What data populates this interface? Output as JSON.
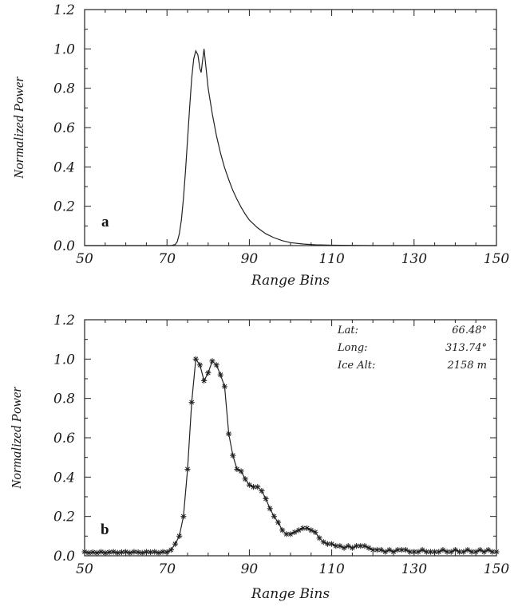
{
  "chart_data": [
    {
      "type": "line",
      "panel_label": "a",
      "xlabel": "Range Bins",
      "ylabel": "Normalized Power",
      "xlim": [
        50,
        150
      ],
      "ylim": [
        0.0,
        1.2
      ],
      "xticks": [
        "50",
        "70",
        "90",
        "110",
        "130",
        "150"
      ],
      "yticks": [
        "0.0",
        "0.2",
        "0.4",
        "0.6",
        "0.8",
        "1.0",
        "1.2"
      ],
      "grid": false,
      "series": [
        {
          "markers": false,
          "points": [
            [
              50,
              0.0
            ],
            [
              70,
              0.0
            ],
            [
              71,
              0.0
            ],
            [
              72,
              0.005
            ],
            [
              72.5,
              0.02
            ],
            [
              73,
              0.06
            ],
            [
              73.5,
              0.13
            ],
            [
              74,
              0.24
            ],
            [
              74.5,
              0.38
            ],
            [
              75,
              0.54
            ],
            [
              75.5,
              0.7
            ],
            [
              76,
              0.85
            ],
            [
              76.5,
              0.95
            ],
            [
              77,
              0.99
            ],
            [
              77.5,
              0.97
            ],
            [
              78,
              0.9
            ],
            [
              78.3,
              0.88
            ],
            [
              78.7,
              0.95
            ],
            [
              79,
              1.0
            ],
            [
              79.5,
              0.9
            ],
            [
              80,
              0.8
            ],
            [
              81,
              0.67
            ],
            [
              82,
              0.56
            ],
            [
              83,
              0.47
            ],
            [
              84,
              0.395
            ],
            [
              85,
              0.335
            ],
            [
              86,
              0.28
            ],
            [
              87,
              0.235
            ],
            [
              88,
              0.195
            ],
            [
              89,
              0.16
            ],
            [
              90,
              0.13
            ],
            [
              92,
              0.09
            ],
            [
              94,
              0.06
            ],
            [
              96,
              0.04
            ],
            [
              98,
              0.025
            ],
            [
              100,
              0.015
            ],
            [
              103,
              0.008
            ],
            [
              106,
              0.004
            ],
            [
              110,
              0.002
            ],
            [
              120,
              0.0
            ],
            [
              130,
              0.0
            ],
            [
              150,
              0.0
            ]
          ]
        }
      ]
    },
    {
      "type": "line",
      "panel_label": "b",
      "xlabel": "Range Bins",
      "ylabel": "Normalized Power",
      "xlim": [
        50,
        150
      ],
      "ylim": [
        0.0,
        1.2
      ],
      "xticks": [
        "50",
        "70",
        "90",
        "110",
        "130",
        "150"
      ],
      "yticks": [
        "0.0",
        "0.2",
        "0.4",
        "0.6",
        "0.8",
        "1.0",
        "1.2"
      ],
      "grid": false,
      "annotations": [
        {
          "key": "Lat:",
          "value": "66.48°"
        },
        {
          "key": "Long:",
          "value": "313.74°"
        },
        {
          "key": "Ice Alt:",
          "value": "2158 m"
        }
      ],
      "series": [
        {
          "markers": true,
          "marker": "asterisk",
          "points": [
            [
              50,
              0.02
            ],
            [
              51,
              0.015
            ],
            [
              52,
              0.018
            ],
            [
              53,
              0.015
            ],
            [
              54,
              0.02
            ],
            [
              55,
              0.015
            ],
            [
              56,
              0.018
            ],
            [
              57,
              0.02
            ],
            [
              58,
              0.015
            ],
            [
              59,
              0.018
            ],
            [
              60,
              0.02
            ],
            [
              61,
              0.015
            ],
            [
              62,
              0.02
            ],
            [
              63,
              0.018
            ],
            [
              64,
              0.015
            ],
            [
              65,
              0.02
            ],
            [
              66,
              0.018
            ],
            [
              67,
              0.02
            ],
            [
              68,
              0.015
            ],
            [
              69,
              0.02
            ],
            [
              70,
              0.018
            ],
            [
              71,
              0.03
            ],
            [
              72,
              0.06
            ],
            [
              73,
              0.1
            ],
            [
              74,
              0.2
            ],
            [
              75,
              0.44
            ],
            [
              76,
              0.78
            ],
            [
              77,
              1.0
            ],
            [
              78,
              0.97
            ],
            [
              79,
              0.89
            ],
            [
              80,
              0.93
            ],
            [
              81,
              0.99
            ],
            [
              82,
              0.97
            ],
            [
              83,
              0.92
            ],
            [
              84,
              0.86
            ],
            [
              85,
              0.62
            ],
            [
              86,
              0.51
            ],
            [
              87,
              0.44
            ],
            [
              88,
              0.43
            ],
            [
              89,
              0.39
            ],
            [
              90,
              0.36
            ],
            [
              91,
              0.35
            ],
            [
              92,
              0.35
            ],
            [
              93,
              0.33
            ],
            [
              94,
              0.29
            ],
            [
              95,
              0.24
            ],
            [
              96,
              0.2
            ],
            [
              97,
              0.17
            ],
            [
              98,
              0.13
            ],
            [
              99,
              0.11
            ],
            [
              100,
              0.11
            ],
            [
              101,
              0.12
            ],
            [
              102,
              0.13
            ],
            [
              103,
              0.14
            ],
            [
              104,
              0.14
            ],
            [
              105,
              0.13
            ],
            [
              106,
              0.12
            ],
            [
              107,
              0.09
            ],
            [
              108,
              0.07
            ],
            [
              109,
              0.06
            ],
            [
              110,
              0.06
            ],
            [
              111,
              0.05
            ],
            [
              112,
              0.05
            ],
            [
              113,
              0.04
            ],
            [
              114,
              0.05
            ],
            [
              115,
              0.04
            ],
            [
              116,
              0.05
            ],
            [
              117,
              0.05
            ],
            [
              118,
              0.05
            ],
            [
              119,
              0.04
            ],
            [
              120,
              0.03
            ],
            [
              121,
              0.03
            ],
            [
              122,
              0.03
            ],
            [
              123,
              0.02
            ],
            [
              124,
              0.03
            ],
            [
              125,
              0.02
            ],
            [
              126,
              0.03
            ],
            [
              127,
              0.03
            ],
            [
              128,
              0.03
            ],
            [
              129,
              0.02
            ],
            [
              130,
              0.02
            ],
            [
              131,
              0.02
            ],
            [
              132,
              0.03
            ],
            [
              133,
              0.02
            ],
            [
              134,
              0.02
            ],
            [
              135,
              0.02
            ],
            [
              136,
              0.02
            ],
            [
              137,
              0.03
            ],
            [
              138,
              0.02
            ],
            [
              139,
              0.02
            ],
            [
              140,
              0.03
            ],
            [
              141,
              0.02
            ],
            [
              142,
              0.02
            ],
            [
              143,
              0.03
            ],
            [
              144,
              0.02
            ],
            [
              145,
              0.02
            ],
            [
              146,
              0.03
            ],
            [
              147,
              0.02
            ],
            [
              148,
              0.03
            ],
            [
              149,
              0.02
            ],
            [
              150,
              0.02
            ]
          ]
        }
      ]
    }
  ]
}
